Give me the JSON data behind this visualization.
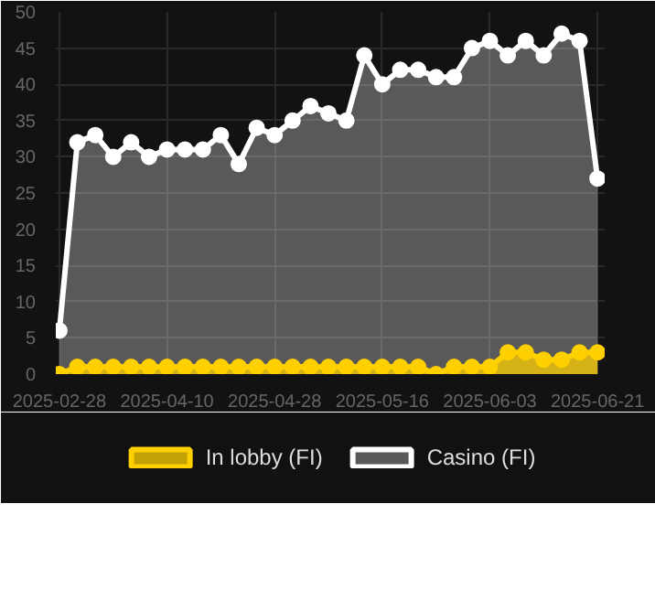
{
  "chart_data": {
    "type": "area",
    "categories": [
      "2025-02-28",
      null,
      null,
      null,
      null,
      null,
      "2025-04-10",
      null,
      null,
      null,
      null,
      null,
      "2025-04-28",
      null,
      null,
      null,
      null,
      null,
      "2025-05-16",
      null,
      null,
      null,
      null,
      null,
      "2025-06-03",
      null,
      null,
      null,
      null,
      null,
      "2025-06-21"
    ],
    "series": [
      {
        "name": "In lobby (FI)",
        "color": "#ffd000",
        "values": [
          0,
          1,
          1,
          1,
          1,
          1,
          1,
          1,
          1,
          1,
          1,
          1,
          1,
          1,
          1,
          1,
          1,
          1,
          1,
          1,
          1,
          0,
          1,
          1,
          1,
          3,
          3,
          2,
          2,
          3,
          3
        ]
      },
      {
        "name": "Casino (FI)",
        "color": "#ffffff",
        "values": [
          6,
          32,
          33,
          30,
          32,
          30,
          31,
          31,
          31,
          33,
          29,
          34,
          33,
          35,
          37,
          36,
          35,
          44,
          40,
          42,
          42,
          41,
          41,
          45,
          46,
          44,
          46,
          44,
          47,
          46,
          27
        ]
      }
    ],
    "ylim": [
      0,
      50
    ],
    "yticks": [
      0,
      5,
      10,
      15,
      20,
      25,
      30,
      35,
      40,
      45,
      50
    ],
    "grid": true,
    "legend": "bottom",
    "marker": "circle",
    "line_style": "solid"
  }
}
